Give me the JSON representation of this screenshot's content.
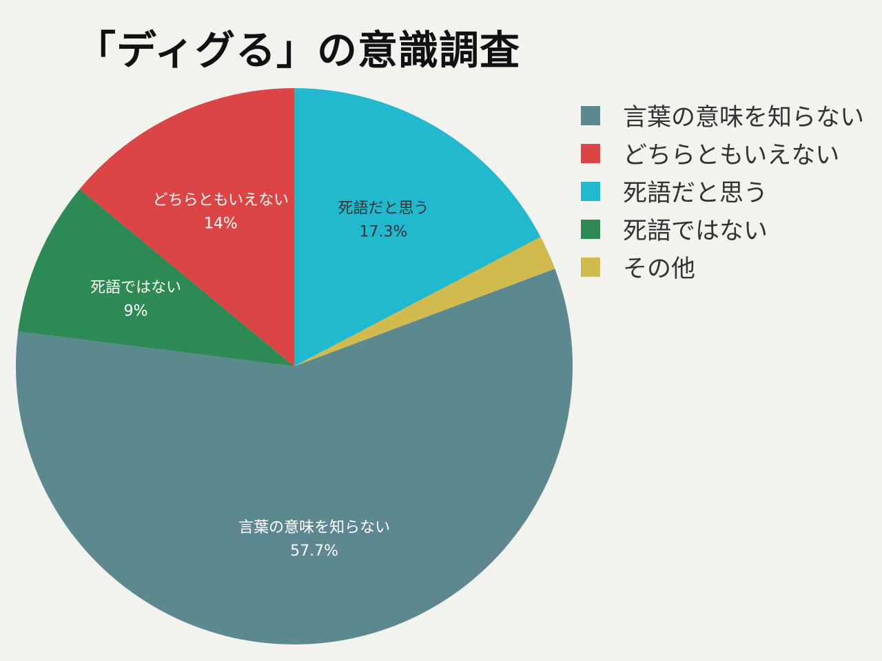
{
  "chart_data": {
    "type": "pie",
    "title": "「ディグる」の意識調査",
    "legend_position": "right",
    "slices": [
      {
        "label": "言葉の意味を知らない",
        "value": 57.7,
        "value_label": "57.7%",
        "color": "#5e8890",
        "show_label": true
      },
      {
        "label": "どちらともいえない",
        "value": 14,
        "value_label": "14%",
        "color": "#db4545",
        "show_label": true
      },
      {
        "label": "死語だと思う",
        "value": 17.3,
        "value_label": "17.3%",
        "color": "#22b9cf",
        "show_label": true
      },
      {
        "label": "死語ではない",
        "value": 9,
        "value_label": "9%",
        "color": "#2e8a55",
        "show_label": true
      },
      {
        "label": "その他",
        "value": 2,
        "value_label": "",
        "color": "#d2bb4e",
        "show_label": false
      }
    ],
    "draw_order": [
      2,
      4,
      0,
      3,
      1
    ]
  }
}
